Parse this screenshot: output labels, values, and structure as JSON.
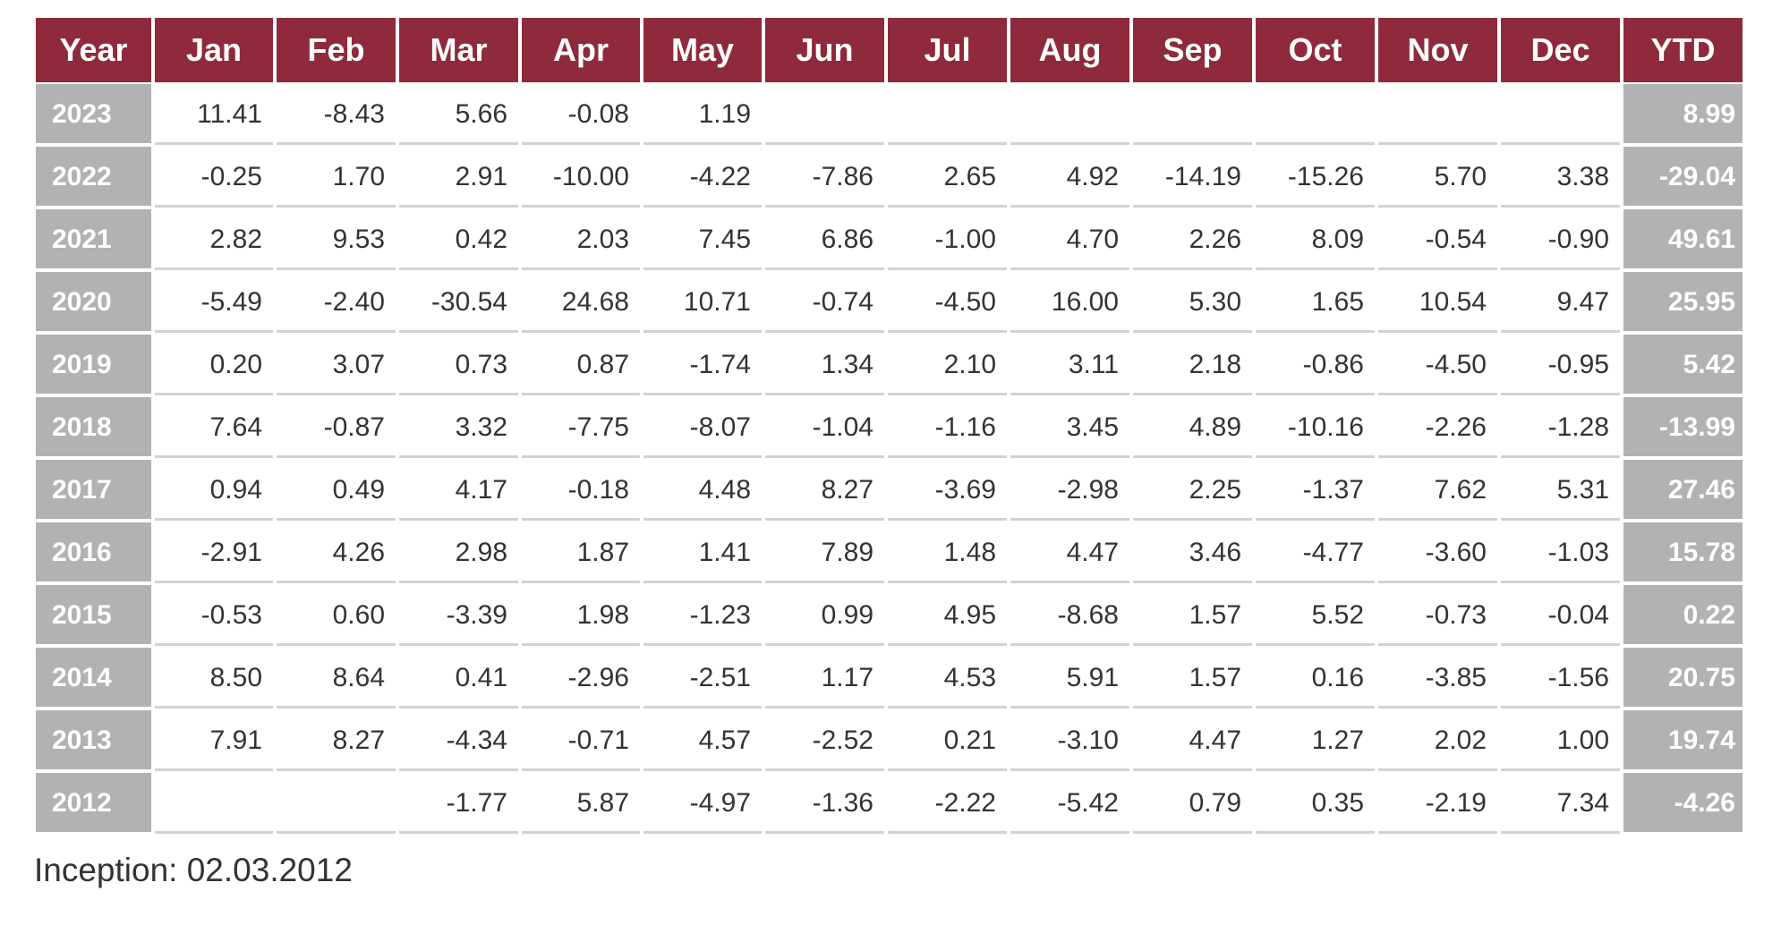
{
  "chart_data": {
    "type": "table",
    "columns": [
      "Year",
      "Jan",
      "Feb",
      "Mar",
      "Apr",
      "May",
      "Jun",
      "Jul",
      "Aug",
      "Sep",
      "Oct",
      "Nov",
      "Dec",
      "YTD"
    ],
    "rows": [
      [
        "2023",
        "11.41",
        "-8.43",
        "5.66",
        "-0.08",
        "1.19",
        "",
        "",
        "",
        "",
        "",
        "",
        "",
        "8.99"
      ],
      [
        "2022",
        "-0.25",
        "1.70",
        "2.91",
        "-10.00",
        "-4.22",
        "-7.86",
        "2.65",
        "4.92",
        "-14.19",
        "-15.26",
        "5.70",
        "3.38",
        "-29.04"
      ],
      [
        "2021",
        "2.82",
        "9.53",
        "0.42",
        "2.03",
        "7.45",
        "6.86",
        "-1.00",
        "4.70",
        "2.26",
        "8.09",
        "-0.54",
        "-0.90",
        "49.61"
      ],
      [
        "2020",
        "-5.49",
        "-2.40",
        "-30.54",
        "24.68",
        "10.71",
        "-0.74",
        "-4.50",
        "16.00",
        "5.30",
        "1.65",
        "10.54",
        "9.47",
        "25.95"
      ],
      [
        "2019",
        "0.20",
        "3.07",
        "0.73",
        "0.87",
        "-1.74",
        "1.34",
        "2.10",
        "3.11",
        "2.18",
        "-0.86",
        "-4.50",
        "-0.95",
        "5.42"
      ],
      [
        "2018",
        "7.64",
        "-0.87",
        "3.32",
        "-7.75",
        "-8.07",
        "-1.04",
        "-1.16",
        "3.45",
        "4.89",
        "-10.16",
        "-2.26",
        "-1.28",
        "-13.99"
      ],
      [
        "2017",
        "0.94",
        "0.49",
        "4.17",
        "-0.18",
        "4.48",
        "8.27",
        "-3.69",
        "-2.98",
        "2.25",
        "-1.37",
        "7.62",
        "5.31",
        "27.46"
      ],
      [
        "2016",
        "-2.91",
        "4.26",
        "2.98",
        "1.87",
        "1.41",
        "7.89",
        "1.48",
        "4.47",
        "3.46",
        "-4.77",
        "-3.60",
        "-1.03",
        "15.78"
      ],
      [
        "2015",
        "-0.53",
        "0.60",
        "-3.39",
        "1.98",
        "-1.23",
        "0.99",
        "4.95",
        "-8.68",
        "1.57",
        "5.52",
        "-0.73",
        "-0.04",
        "0.22"
      ],
      [
        "2014",
        "8.50",
        "8.64",
        "0.41",
        "-2.96",
        "-2.51",
        "1.17",
        "4.53",
        "5.91",
        "1.57",
        "0.16",
        "-3.85",
        "-1.56",
        "20.75"
      ],
      [
        "2013",
        "7.91",
        "8.27",
        "-4.34",
        "-0.71",
        "4.57",
        "-2.52",
        "0.21",
        "-3.10",
        "4.47",
        "1.27",
        "2.02",
        "1.00",
        "19.74"
      ],
      [
        "2012",
        "",
        "",
        "-1.77",
        "5.87",
        "-4.97",
        "-1.36",
        "-2.22",
        "-5.42",
        "0.79",
        "0.35",
        "-2.19",
        "7.34",
        "-4.26"
      ]
    ],
    "colors": {
      "header_bg": "#8e2a3b",
      "header_text": "#ffffff",
      "side_bg": "#b2b2b4",
      "side_text": "#ffffff",
      "cell_text": "#333333",
      "row_divider": "#d2d2d2"
    }
  },
  "footnote": "Inception: 02.03.2012"
}
